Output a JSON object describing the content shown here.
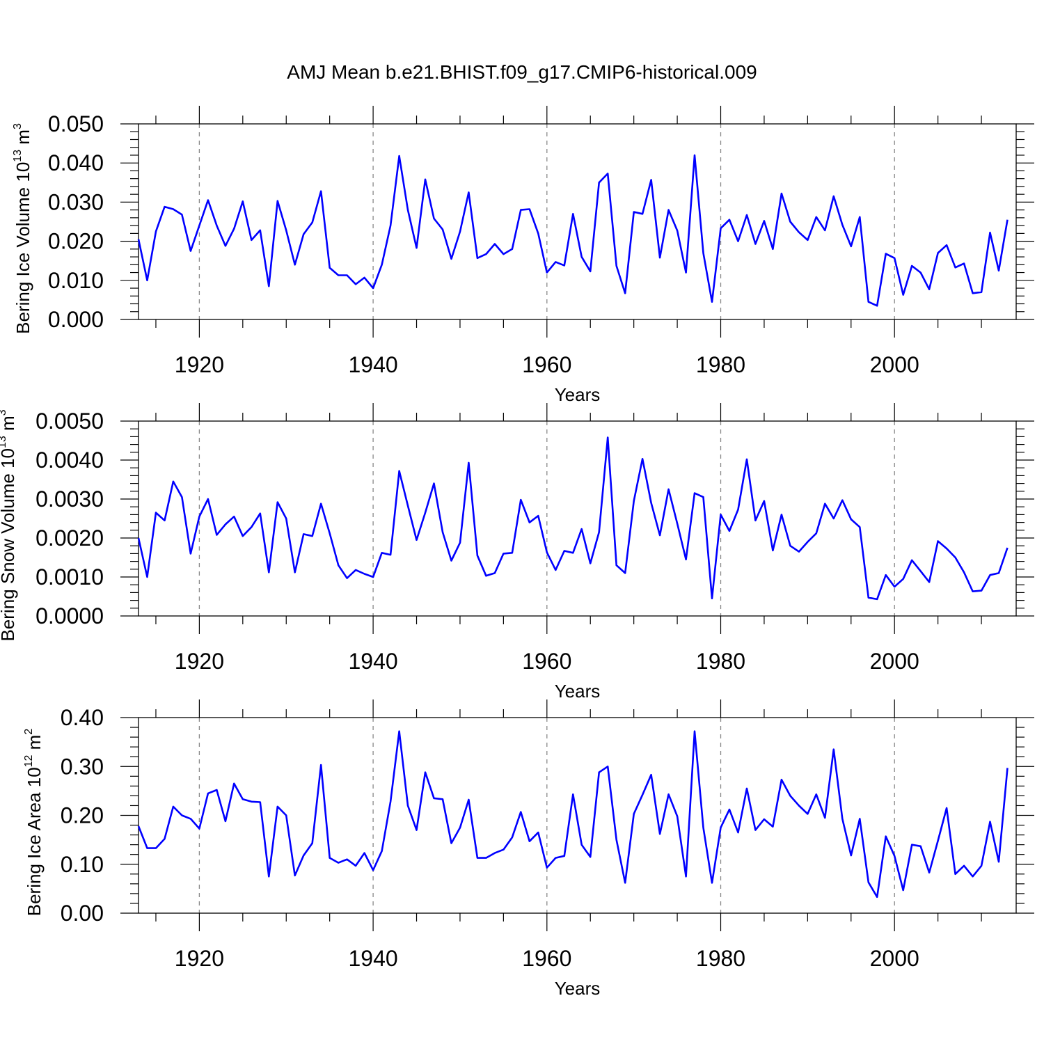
{
  "title": "AMJ Mean b.e21.BHIST.f09_g17.CMIP6-historical.009",
  "line_color": "#0000ff",
  "chart_data": [
    {
      "type": "line",
      "name": "ice-volume",
      "ylabel": "Bering Ice Volume 10",
      "ylabel_sup": "13",
      "ylabel_unit": " m",
      "ylabel_unit_sup": "3",
      "xlabel": "Years",
      "xlim": [
        1913,
        2014
      ],
      "ylim": [
        0,
        0.05
      ],
      "yticks": [
        0.0,
        0.01,
        0.02,
        0.03,
        0.04,
        0.05
      ],
      "ytick_labels": [
        "0.000",
        "0.010",
        "0.020",
        "0.030",
        "0.040",
        "0.050"
      ],
      "xticks": [
        1920,
        1940,
        1960,
        1980,
        2000
      ],
      "xtick_labels": [
        "1920",
        "1940",
        "1960",
        "1980",
        "2000"
      ],
      "x_start": 1913,
      "values": [
        0.0205,
        0.01,
        0.0225,
        0.0288,
        0.0282,
        0.0268,
        0.0175,
        0.024,
        0.0305,
        0.024,
        0.0188,
        0.0232,
        0.0302,
        0.0203,
        0.0228,
        0.0085,
        0.0303,
        0.0228,
        0.014,
        0.0218,
        0.0248,
        0.0328,
        0.0132,
        0.0113,
        0.0113,
        0.009,
        0.0107,
        0.008,
        0.014,
        0.024,
        0.0418,
        0.028,
        0.0183,
        0.0358,
        0.0258,
        0.023,
        0.0155,
        0.0225,
        0.0325,
        0.0157,
        0.0167,
        0.0193,
        0.0167,
        0.018,
        0.028,
        0.0282,
        0.022,
        0.012,
        0.0147,
        0.0138,
        0.027,
        0.016,
        0.0123,
        0.035,
        0.0373,
        0.0137,
        0.0067,
        0.0275,
        0.027,
        0.0357,
        0.0158,
        0.028,
        0.0227,
        0.012,
        0.042,
        0.017,
        0.0045,
        0.0233,
        0.0255,
        0.02,
        0.0267,
        0.0193,
        0.0252,
        0.018,
        0.0322,
        0.025,
        0.0223,
        0.0203,
        0.0262,
        0.0228,
        0.0315,
        0.0242,
        0.0187,
        0.0262,
        0.0045,
        0.0035,
        0.0168,
        0.0157,
        0.0063,
        0.0137,
        0.012,
        0.0077,
        0.017,
        0.019,
        0.0133,
        0.0143,
        0.0067,
        0.007,
        0.0222,
        0.0125,
        0.0255
      ]
    },
    {
      "type": "line",
      "name": "snow-volume",
      "ylabel": "Bering Snow Volume 10",
      "ylabel_sup": "13",
      "ylabel_unit": " m",
      "ylabel_unit_sup": "3",
      "xlabel": "Years",
      "xlim": [
        1913,
        2014
      ],
      "ylim": [
        0,
        0.005
      ],
      "yticks": [
        0.0,
        0.001,
        0.002,
        0.003,
        0.004,
        0.005
      ],
      "ytick_labels": [
        "0.0000",
        "0.0010",
        "0.0020",
        "0.0030",
        "0.0040",
        "0.0050"
      ],
      "xticks": [
        1920,
        1940,
        1960,
        1980,
        2000
      ],
      "xtick_labels": [
        "1920",
        "1940",
        "1960",
        "1980",
        "2000"
      ],
      "x_start": 1913,
      "values": [
        0.002,
        0.001,
        0.00265,
        0.00245,
        0.00345,
        0.00305,
        0.0016,
        0.00255,
        0.003,
        0.00208,
        0.00235,
        0.00255,
        0.00205,
        0.00228,
        0.00263,
        0.00112,
        0.00292,
        0.0025,
        0.00112,
        0.0021,
        0.00205,
        0.00288,
        0.00212,
        0.0013,
        0.00097,
        0.00118,
        0.00108,
        0.001,
        0.00162,
        0.00157,
        0.00372,
        0.00283,
        0.00195,
        0.00265,
        0.0034,
        0.00215,
        0.00142,
        0.00188,
        0.00393,
        0.00155,
        0.00103,
        0.0011,
        0.0016,
        0.00162,
        0.00298,
        0.0024,
        0.00257,
        0.00163,
        0.00118,
        0.00167,
        0.00162,
        0.00223,
        0.00135,
        0.00215,
        0.00458,
        0.0013,
        0.0011,
        0.00295,
        0.00403,
        0.0029,
        0.00207,
        0.00325,
        0.00237,
        0.00145,
        0.00315,
        0.00305,
        0.00045,
        0.0026,
        0.00218,
        0.00273,
        0.00402,
        0.00245,
        0.00295,
        0.00168,
        0.0026,
        0.0018,
        0.00165,
        0.0019,
        0.00212,
        0.00288,
        0.0025,
        0.00297,
        0.00248,
        0.00228,
        0.00047,
        0.00043,
        0.00105,
        0.00075,
        0.00095,
        0.00143,
        0.00115,
        0.00087,
        0.00192,
        0.00173,
        0.0015,
        0.00112,
        0.00063,
        0.00065,
        0.00105,
        0.0011,
        0.00175
      ]
    },
    {
      "type": "line",
      "name": "ice-area",
      "ylabel": "Bering Ice Area 10",
      "ylabel_sup": "12",
      "ylabel_unit": " m",
      "ylabel_unit_sup": "2",
      "xlabel": "Years",
      "xlim": [
        1913,
        2014
      ],
      "ylim": [
        0,
        0.4
      ],
      "yticks": [
        0.0,
        0.1,
        0.2,
        0.3,
        0.4
      ],
      "ytick_labels": [
        "0.00",
        "0.10",
        "0.20",
        "0.30",
        "0.40"
      ],
      "xticks": [
        1920,
        1940,
        1960,
        1980,
        2000
      ],
      "xtick_labels": [
        "1920",
        "1940",
        "1960",
        "1980",
        "2000"
      ],
      "x_start": 1913,
      "values": [
        0.178,
        0.133,
        0.133,
        0.152,
        0.218,
        0.2,
        0.193,
        0.173,
        0.245,
        0.252,
        0.188,
        0.265,
        0.233,
        0.228,
        0.227,
        0.075,
        0.218,
        0.2,
        0.077,
        0.118,
        0.143,
        0.303,
        0.113,
        0.103,
        0.11,
        0.097,
        0.123,
        0.088,
        0.127,
        0.228,
        0.372,
        0.22,
        0.17,
        0.288,
        0.235,
        0.233,
        0.143,
        0.175,
        0.232,
        0.113,
        0.113,
        0.123,
        0.13,
        0.155,
        0.207,
        0.147,
        0.165,
        0.093,
        0.113,
        0.117,
        0.243,
        0.14,
        0.115,
        0.288,
        0.3,
        0.15,
        0.062,
        0.203,
        0.242,
        0.283,
        0.162,
        0.243,
        0.198,
        0.075,
        0.372,
        0.175,
        0.062,
        0.175,
        0.212,
        0.165,
        0.255,
        0.17,
        0.192,
        0.177,
        0.273,
        0.24,
        0.22,
        0.203,
        0.243,
        0.195,
        0.335,
        0.193,
        0.118,
        0.193,
        0.063,
        0.033,
        0.157,
        0.117,
        0.047,
        0.14,
        0.137,
        0.083,
        0.148,
        0.215,
        0.08,
        0.097,
        0.075,
        0.097,
        0.187,
        0.105,
        0.297
      ]
    }
  ]
}
